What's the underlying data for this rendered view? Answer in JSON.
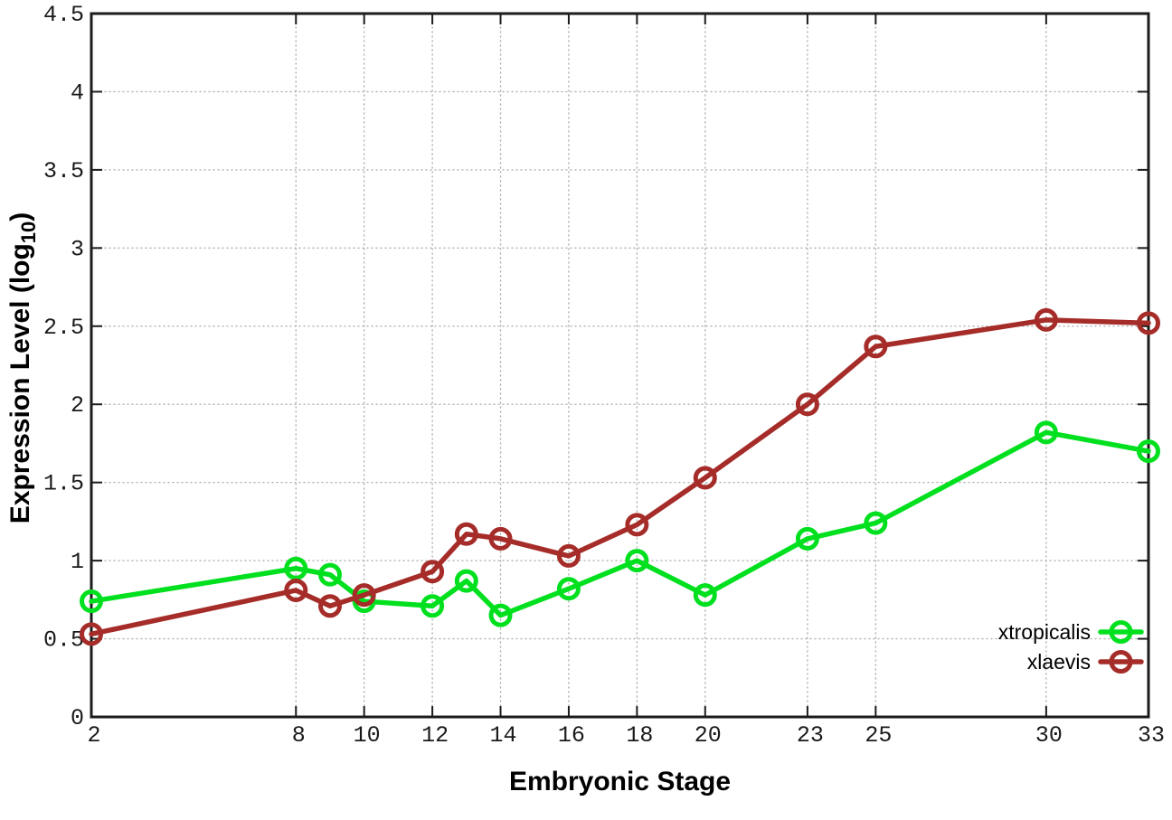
{
  "figure": {
    "background": "#ffffff",
    "border_color": "#1c1c1c",
    "grid_color": "#b0b0b0",
    "text_color": "#000000"
  },
  "chart_data": {
    "type": "line",
    "title": "",
    "xlabel": "Embryonic Stage",
    "ylabel": {
      "full": "Expression Level (log10)",
      "prefix": "Expression Level (log",
      "subscript": "10",
      "suffix": ")"
    },
    "xlim": [
      2,
      33
    ],
    "ylim": [
      0,
      4.5
    ],
    "grid": true,
    "x": [
      2,
      8,
      9,
      10,
      12,
      13,
      14,
      16,
      18,
      20,
      23,
      25,
      30,
      33
    ],
    "xticks": {
      "values": [
        2,
        8,
        10,
        12,
        14,
        16,
        18,
        20,
        23,
        25,
        30,
        33
      ],
      "labels": [
        "2",
        "8",
        "10",
        "12",
        "14",
        "16",
        "18",
        "20",
        "23",
        "25",
        "30",
        "33"
      ]
    },
    "yticks": {
      "values": [
        0,
        0.5,
        1,
        1.5,
        2,
        2.5,
        3,
        3.5,
        4,
        4.5
      ],
      "labels": [
        "0",
        "0.5",
        "1",
        "1.5",
        "2",
        "2.5",
        "3",
        "3.5",
        "4",
        "4.5"
      ]
    },
    "series": [
      {
        "name": "xtropicalis",
        "color": "#00e01e",
        "marker": "open-circle",
        "values": [
          0.74,
          0.95,
          0.91,
          0.74,
          0.71,
          0.87,
          0.65,
          0.82,
          1.0,
          0.78,
          1.14,
          1.24,
          1.82,
          1.7
        ]
      },
      {
        "name": "xlaevis",
        "color": "#a52c28",
        "marker": "open-circle",
        "values": [
          0.53,
          0.81,
          0.71,
          0.78,
          0.93,
          1.17,
          1.14,
          1.03,
          1.23,
          1.53,
          2.0,
          2.37,
          2.54,
          2.52
        ]
      }
    ],
    "legend": {
      "position": "bottom-right",
      "entries": [
        "xtropicalis",
        "xlaevis"
      ]
    }
  }
}
